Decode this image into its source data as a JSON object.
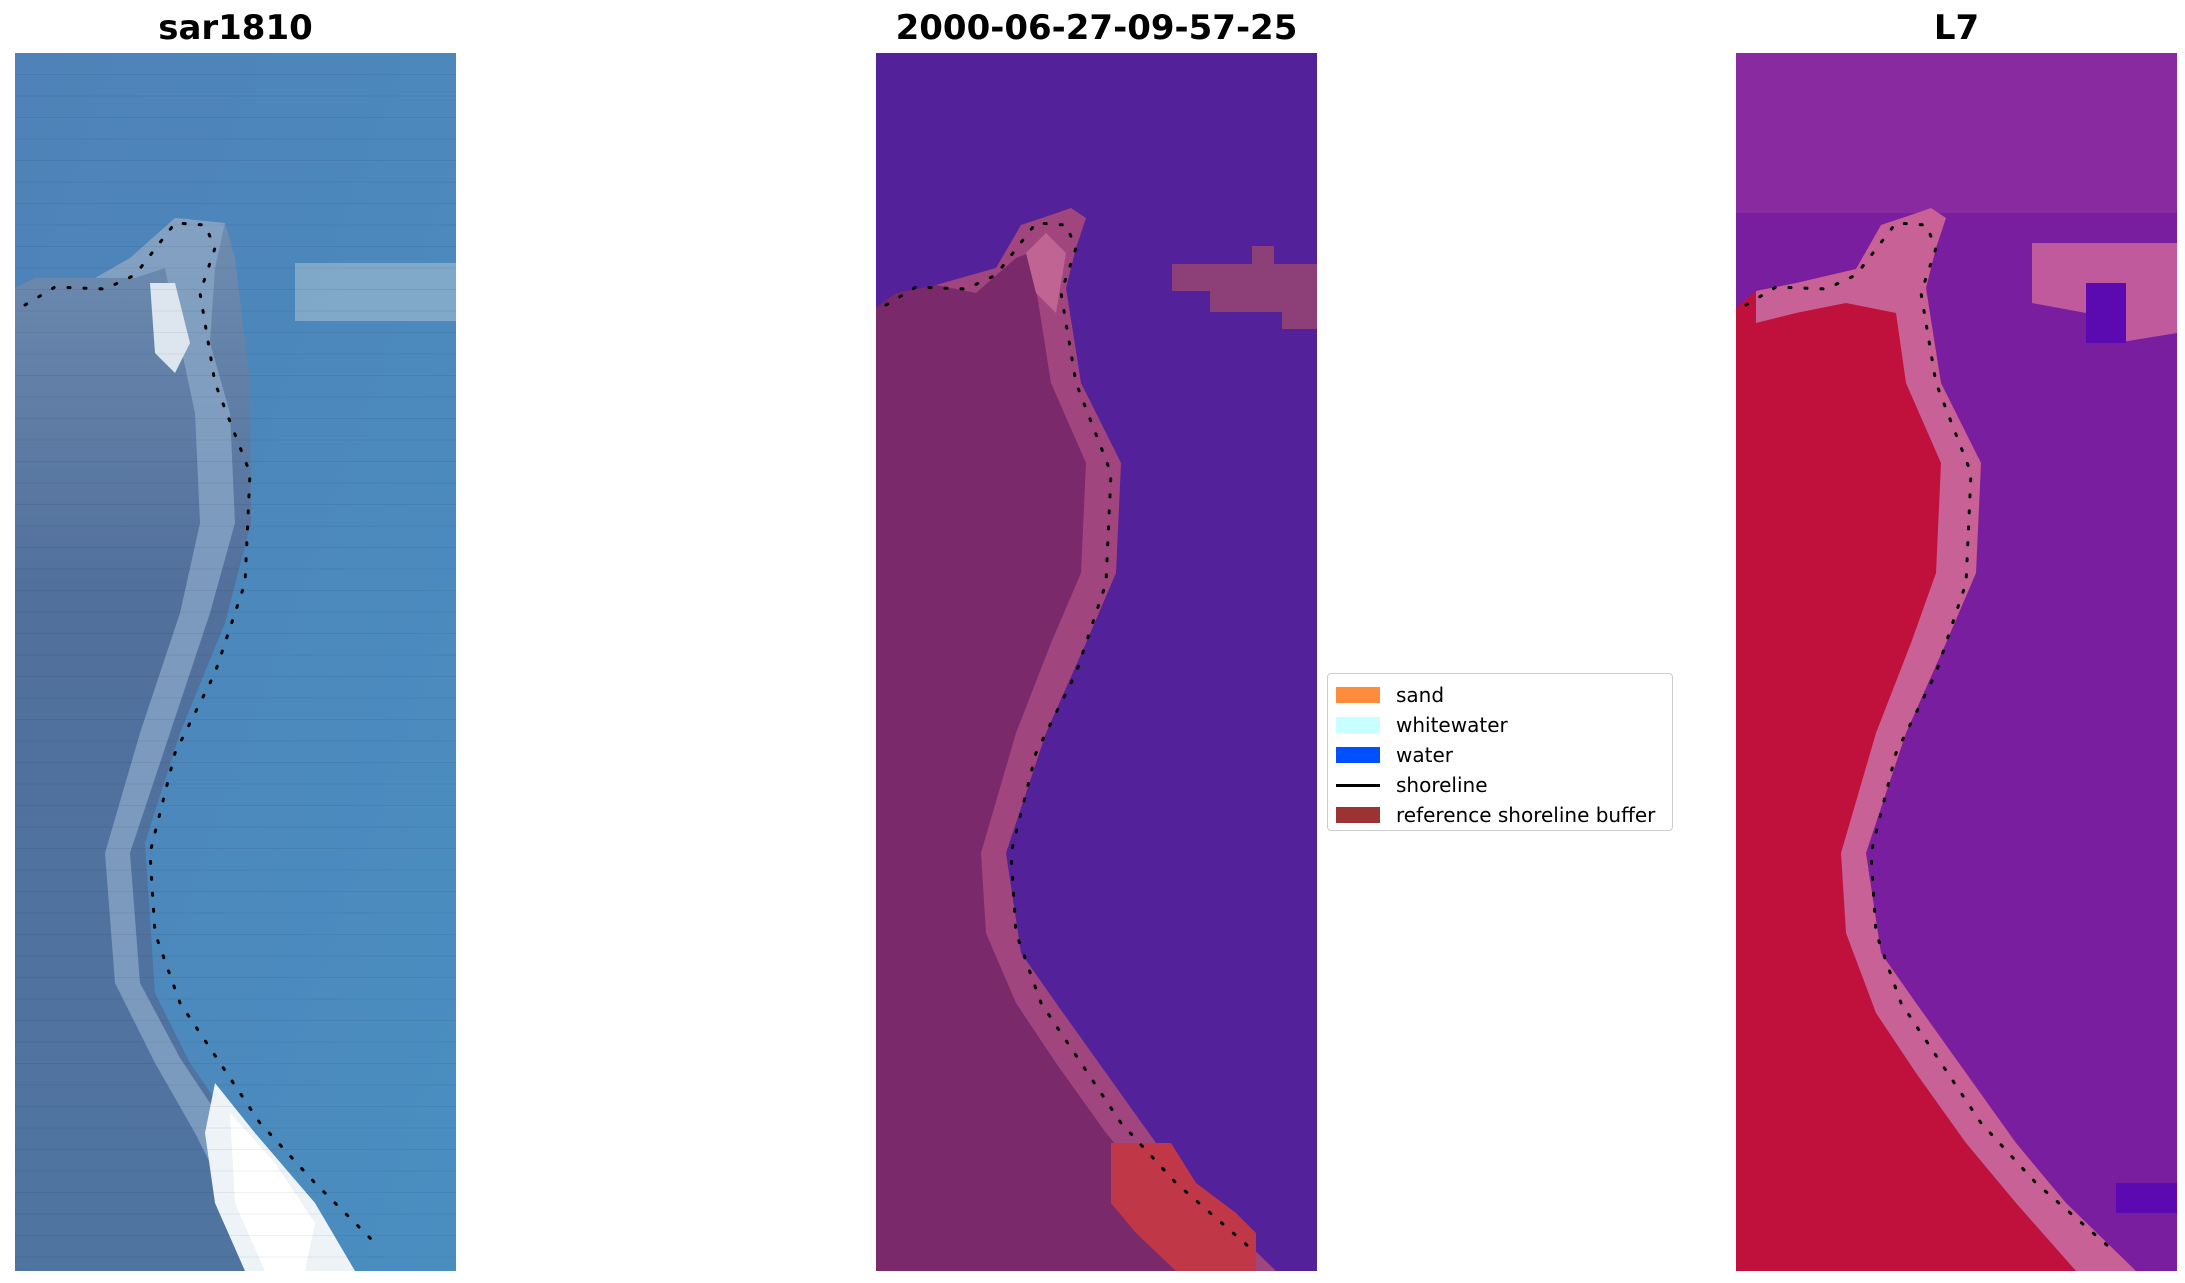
{
  "panels": [
    {
      "title": "sar1810"
    },
    {
      "title": "2000-06-27-09-57-25"
    },
    {
      "title": "L7"
    }
  ],
  "legend": {
    "items": [
      {
        "label": "sand",
        "color": "#ff8c3c",
        "kind": "patch",
        "icon": "sand-swatch"
      },
      {
        "label": "whitewater",
        "color": "#c8ffff",
        "kind": "patch",
        "icon": "whitewater-swatch"
      },
      {
        "label": "water",
        "color": "#0050ff",
        "kind": "patch",
        "icon": "water-swatch"
      },
      {
        "label": "shoreline",
        "color": "#000000",
        "kind": "line",
        "icon": "shoreline-line"
      },
      {
        "label": "reference shoreline buffer",
        "color": "#9b3333",
        "kind": "patch",
        "icon": "buffer-swatch"
      }
    ]
  },
  "colors": {
    "rgb_water": "#4a86b8",
    "rgb_land": "#5a78a0",
    "rgb_white": "#f2f6fa",
    "class_water": "#53219a",
    "class_land": "#7a2a6a",
    "class_shore": "#b85c8c",
    "class_buffer": "#c03848",
    "mndwi_water": "#7a1aa0",
    "mndwi_land": "#c0103c",
    "mndwi_shore": "#c86aa0"
  }
}
